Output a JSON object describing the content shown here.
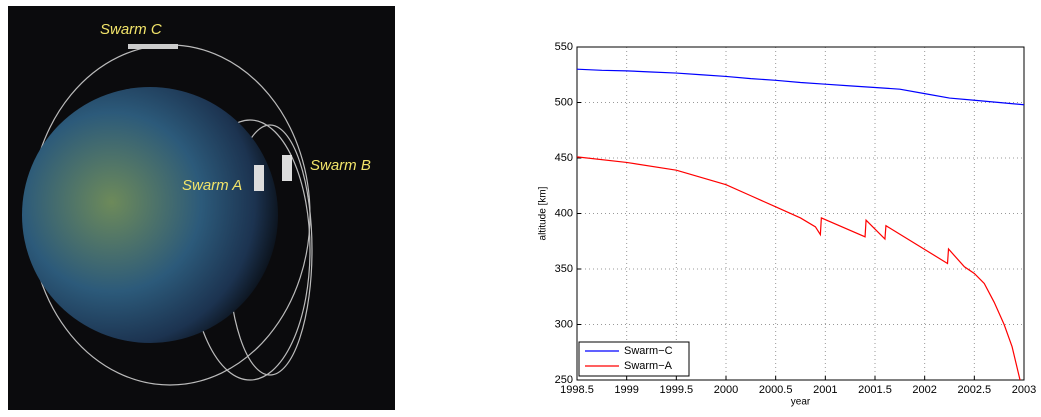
{
  "illustration": {
    "labels": [
      "Swarm C",
      "Swarm A",
      "Swarm B"
    ]
  },
  "chart_data": {
    "type": "line",
    "xlabel": "year",
    "ylabel": "altitude [km]",
    "xlim": [
      1998.5,
      2003
    ],
    "xticks": [
      1998.5,
      1999,
      1999.5,
      2000,
      2000.5,
      2001,
      2001.5,
      2002,
      2002.5,
      2003
    ],
    "ylim": [
      250,
      550
    ],
    "yticks": [
      250,
      300,
      350,
      400,
      450,
      500,
      550
    ],
    "grid": true,
    "legend": "lower left",
    "series": [
      {
        "name": "Swarm−C",
        "color": "#0000ff",
        "x": [
          1998.5,
          1998.75,
          1999,
          1999.25,
          1999.5,
          1999.75,
          2000,
          2000.25,
          2000.5,
          2000.75,
          2001,
          2001.25,
          2001.5,
          2001.75,
          2002,
          2002.25,
          2002.5,
          2002.75,
          2003
        ],
        "values": [
          530,
          529,
          528.5,
          527.5,
          526.5,
          525,
          523.5,
          521.5,
          520,
          518,
          516.5,
          515,
          513.5,
          512,
          508,
          504,
          502,
          500,
          498
        ]
      },
      {
        "name": "Swarm−A",
        "color": "#ff0000",
        "x": [
          1998.5,
          1999,
          1999.5,
          2000,
          2000.25,
          2000.5,
          2000.75,
          2000.9,
          2000.95,
          2000.96,
          2001.4,
          2001.41,
          2001.6,
          2001.61,
          2002.23,
          2002.24,
          2002.4,
          2002.5,
          2002.6,
          2002.7,
          2002.8,
          2002.88,
          2002.96
        ],
        "values": [
          451,
          446,
          439,
          426,
          416,
          406,
          396,
          388,
          381,
          396,
          379,
          394,
          377,
          389,
          355,
          368,
          352,
          346,
          337,
          320,
          300,
          280,
          250
        ]
      }
    ]
  }
}
